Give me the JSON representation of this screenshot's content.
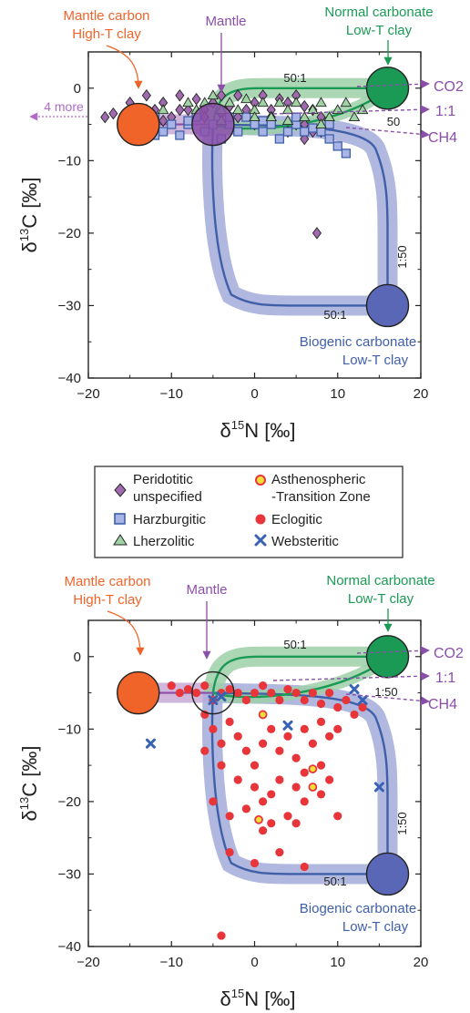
{
  "colors": {
    "mantle_purple": "#8a4fa8",
    "orange": "#f0642a",
    "green": "#1b9a55",
    "blue": "#3f5fa8",
    "band_blue": "#a9b0dc",
    "band_green": "#9ed0a8",
    "band_purple": "#c9a9d6",
    "peridotitic": "#a06aae",
    "harzburgitic": "#a9b4e6",
    "lherzolitic": "#9fd3a3",
    "eclogitic": "#e8353a",
    "websteritic": "#3a62b4",
    "asthenospheric": "#f2df3a"
  },
  "icons": {
    "peridotitic": "diamond-icon",
    "harzburgitic": "square-icon",
    "lherzolitic": "triangle-icon",
    "asthenospheric": "ring-circle-icon",
    "eclogitic": "dot-icon",
    "websteritic": "cross-icon"
  },
  "legend": {
    "peridotitic": [
      "Peridotitic",
      "unspecified"
    ],
    "harzburgitic": "Harzburgitic",
    "lherzolitic": "Lherzolitic",
    "asthenospheric": [
      "Asthenospheric",
      "-Transition Zone"
    ],
    "eclogitic": "Eclogitic",
    "websteritic": "Websteritic"
  },
  "chart_data": [
    {
      "type": "scatter",
      "panel": "top",
      "xlabel": "δ15N [‰]",
      "ylabel": "δ13C [‰]",
      "xlim": [
        -20,
        20
      ],
      "ylim": [
        -40,
        5
      ],
      "xticks": [
        "−20",
        "−10",
        "0",
        "10",
        "20"
      ],
      "yticks": [
        "0",
        "−10",
        "−20",
        "−30",
        "−40"
      ],
      "annotations": {
        "mantle_carbon": [
          "Mantle carbon",
          "High-T clay"
        ],
        "mantle": "Mantle",
        "normal_carbonate": [
          "Normal carbonate",
          "Low-T clay"
        ],
        "biogenic_carbonate": [
          "Biogenic carbonate",
          "Low-T clay"
        ],
        "more": "4 more",
        "ratio_green": "50:1",
        "ratio_green_end": "50",
        "ratio_blue_right": "1:50",
        "ratio_blue_bottom": "50:1",
        "co2": "CO2",
        "one_to_one": "1:1",
        "ch4": "CH4"
      },
      "endmembers": {
        "mantle_carbon": [
          -14,
          -5
        ],
        "mantle": [
          -5,
          -5
        ],
        "normal_carbonate": [
          16,
          0
        ],
        "biogenic_carbonate": [
          16,
          -30
        ]
      },
      "series": [
        {
          "name": "Peridotitic unspecified",
          "marker": "diamond",
          "points": [
            [
              -18,
              -4
            ],
            [
              -17,
              -3.5
            ],
            [
              -16,
              -5
            ],
            [
              -15,
              -2
            ],
            [
              -14,
              -4
            ],
            [
              -13,
              -1
            ],
            [
              -12,
              -3
            ],
            [
              -11,
              -2
            ],
            [
              -10,
              -4
            ],
            [
              -9,
              -1
            ],
            [
              -8,
              -3
            ],
            [
              -7,
              -1.5
            ],
            [
              -6,
              -3
            ],
            [
              -5,
              -2
            ],
            [
              -4,
              -1
            ],
            [
              -3,
              -2.5
            ],
            [
              -2,
              -1
            ],
            [
              -1,
              -3
            ],
            [
              0,
              -2
            ],
            [
              1,
              -1
            ],
            [
              2,
              -3
            ],
            [
              3,
              -1.5
            ],
            [
              4,
              -2
            ],
            [
              5,
              -1
            ],
            [
              6,
              -2.5
            ],
            [
              7,
              -3
            ],
            [
              8,
              -4
            ],
            [
              6,
              -7
            ],
            [
              7,
              -6
            ],
            [
              5,
              -5
            ],
            [
              7.5,
              -20
            ],
            [
              -13,
              -3
            ],
            [
              -11,
              -4.5
            ],
            [
              -9,
              -3
            ],
            [
              -6,
              -4
            ],
            [
              -4,
              -3.5
            ],
            [
              -2,
              -4
            ],
            [
              0,
              -5
            ],
            [
              2,
              -4
            ],
            [
              4,
              -6
            ],
            [
              6,
              -5
            ],
            [
              8,
              -6
            ]
          ]
        },
        {
          "name": "Harzburgitic",
          "marker": "square",
          "points": [
            [
              -14,
              -6
            ],
            [
              -13,
              -5
            ],
            [
              -12,
              -4
            ],
            [
              -11,
              -6
            ],
            [
              -10,
              -5
            ],
            [
              -9,
              -6.5
            ],
            [
              -8,
              -5
            ],
            [
              -7,
              -4
            ],
            [
              -6,
              -6
            ],
            [
              -5,
              -5
            ],
            [
              -4,
              -7
            ],
            [
              -3,
              -5
            ],
            [
              -2,
              -6
            ],
            [
              -1,
              -4
            ],
            [
              0,
              -5
            ],
            [
              1,
              -6
            ],
            [
              2,
              -5
            ],
            [
              3,
              -7
            ],
            [
              4,
              -6
            ],
            [
              5,
              -5
            ],
            [
              6,
              -6
            ],
            [
              7,
              -5.5
            ],
            [
              8,
              -6
            ],
            [
              9,
              -7
            ],
            [
              10,
              -8
            ],
            [
              11,
              -9
            ],
            [
              -15,
              -5
            ],
            [
              -12,
              -6.5
            ],
            [
              -8,
              -4.5
            ],
            [
              -3,
              -4
            ],
            [
              1,
              -4.5
            ],
            [
              5,
              -4
            ],
            [
              9,
              -5
            ]
          ]
        },
        {
          "name": "Lherzolitic",
          "marker": "triangle",
          "points": [
            [
              -11,
              -3
            ],
            [
              -8,
              -2
            ],
            [
              -7,
              -3
            ],
            [
              -6,
              -2
            ],
            [
              -5,
              -1
            ],
            [
              -4,
              -3
            ],
            [
              -3,
              -2
            ],
            [
              -2,
              -3
            ],
            [
              -1,
              -1.5
            ],
            [
              0,
              -3
            ],
            [
              1,
              -2
            ],
            [
              2,
              -4
            ],
            [
              3,
              -2
            ],
            [
              4,
              -3
            ],
            [
              5,
              -2
            ],
            [
              6,
              -4
            ],
            [
              7,
              -3
            ],
            [
              8,
              -2
            ],
            [
              9,
              -4
            ],
            [
              10,
              -3
            ],
            [
              11,
              -2
            ],
            [
              12,
              -4
            ],
            [
              13,
              -3
            ],
            [
              -4,
              -4.5
            ],
            [
              0,
              -4
            ],
            [
              4,
              -4.5
            ],
            [
              8,
              -5
            ]
          ]
        }
      ]
    },
    {
      "type": "scatter",
      "panel": "bottom",
      "xlabel": "δ15N [‰]",
      "ylabel": "δ13C [‰]",
      "xlim": [
        -20,
        20
      ],
      "ylim": [
        -40,
        5
      ],
      "xticks": [
        "−20",
        "−10",
        "0",
        "10",
        "20"
      ],
      "yticks": [
        "0",
        "−10",
        "−20",
        "−30",
        "−40"
      ],
      "annotations": {
        "mantle_carbon": [
          "Mantle carbon",
          "High-T clay"
        ],
        "mantle": "Mantle",
        "normal_carbonate": [
          "Normal carbonate",
          "Low-T clay"
        ],
        "biogenic_carbonate": [
          "Biogenic carbonate",
          "Low-T clay"
        ],
        "ratio_green": "50:1",
        "ratio_green_end": "1:50",
        "ratio_blue_right": "1:50",
        "ratio_blue_bottom": "50:1",
        "co2": "CO2",
        "one_to_one": "1:1",
        "ch4": "CH4"
      },
      "endmembers": {
        "mantle_carbon": [
          -14,
          -5
        ],
        "mantle": [
          -5,
          -5
        ],
        "normal_carbonate": [
          16,
          0
        ],
        "biogenic_carbonate": [
          16,
          -30
        ]
      },
      "series": [
        {
          "name": "Eclogitic",
          "marker": "dot",
          "points": [
            [
              -10,
              -4
            ],
            [
              -9,
              -5
            ],
            [
              -8,
              -4.5
            ],
            [
              -7,
              -5
            ],
            [
              -6,
              -4
            ],
            [
              -5,
              -6
            ],
            [
              -4,
              -5
            ],
            [
              -3,
              -4.5
            ],
            [
              -2,
              -5
            ],
            [
              -1,
              -6
            ],
            [
              0,
              -5
            ],
            [
              1,
              -4
            ],
            [
              2,
              -5
            ],
            [
              3,
              -6
            ],
            [
              4,
              -4.5
            ],
            [
              5,
              -5
            ],
            [
              6,
              -6
            ],
            [
              7,
              -5
            ],
            [
              8,
              -6.5
            ],
            [
              9,
              -5
            ],
            [
              10,
              -7
            ],
            [
              11,
              -6
            ],
            [
              12,
              -8
            ],
            [
              13,
              -7
            ],
            [
              -6,
              -8
            ],
            [
              -5,
              -10
            ],
            [
              -4,
              -12
            ],
            [
              -6,
              -13
            ],
            [
              -3,
              -9
            ],
            [
              -2,
              -11
            ],
            [
              -1,
              -13
            ],
            [
              0,
              -15
            ],
            [
              1,
              -12
            ],
            [
              2,
              -10
            ],
            [
              3,
              -13
            ],
            [
              4,
              -11
            ],
            [
              5,
              -14
            ],
            [
              6,
              -10
            ],
            [
              7,
              -12
            ],
            [
              8,
              -9
            ],
            [
              9,
              -11
            ],
            [
              10,
              -10
            ],
            [
              -4,
              -15
            ],
            [
              -2,
              -17
            ],
            [
              0,
              -18
            ],
            [
              1,
              -20
            ],
            [
              2,
              -19
            ],
            [
              3,
              -17
            ],
            [
              5,
              -18
            ],
            [
              6,
              -16
            ],
            [
              8,
              -15
            ],
            [
              9,
              -17
            ],
            [
              -5,
              -20
            ],
            [
              -3,
              -22
            ],
            [
              -1,
              -21
            ],
            [
              2,
              -23
            ],
            [
              4,
              -22
            ],
            [
              6,
              -20
            ],
            [
              8,
              -19
            ],
            [
              10,
              -22
            ],
            [
              -3,
              -27
            ],
            [
              0,
              -28.5
            ],
            [
              3,
              -27
            ],
            [
              6,
              -29
            ],
            [
              -4,
              -38.5
            ],
            [
              1,
              -24
            ],
            [
              5,
              -23
            ],
            [
              16,
              0
            ]
          ]
        },
        {
          "name": "Websteritic",
          "marker": "cross",
          "points": [
            [
              -12.5,
              -12
            ],
            [
              -5,
              -6
            ],
            [
              -4,
              -5.5
            ],
            [
              4,
              -9.5
            ],
            [
              12,
              -4.5
            ],
            [
              13,
              -6
            ],
            [
              15,
              -18
            ]
          ]
        },
        {
          "name": "Asthenospheric-Transition Zone",
          "marker": "ring",
          "points": [
            [
              1,
              -8
            ],
            [
              7,
              -15.5
            ],
            [
              7,
              -18
            ],
            [
              0.5,
              -22.5
            ]
          ]
        }
      ]
    }
  ]
}
